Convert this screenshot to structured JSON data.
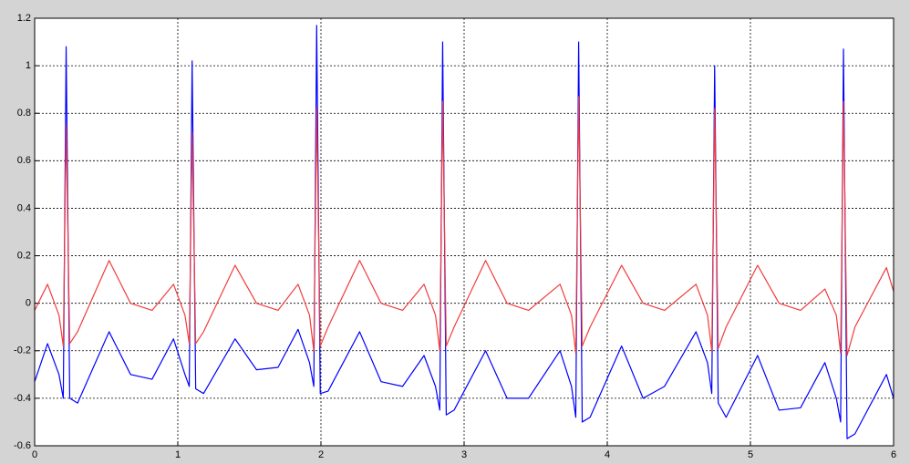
{
  "chart_data": {
    "type": "line",
    "x": [
      0.0,
      0.09,
      0.17,
      0.2,
      0.22,
      0.245,
      0.3,
      0.52,
      0.67,
      0.82,
      0.97,
      1.05,
      1.08,
      1.1,
      1.125,
      1.18,
      1.4,
      1.55,
      1.7,
      1.84,
      1.92,
      1.95,
      1.97,
      1.995,
      2.05,
      2.27,
      2.42,
      2.57,
      2.72,
      2.8,
      2.83,
      2.85,
      2.875,
      2.93,
      3.15,
      3.3,
      3.45,
      3.67,
      3.75,
      3.78,
      3.8,
      3.825,
      3.88,
      4.1,
      4.25,
      4.4,
      4.62,
      4.7,
      4.73,
      4.75,
      4.775,
      4.83,
      5.05,
      5.2,
      5.35,
      5.52,
      5.6,
      5.63,
      5.65,
      5.675,
      5.73,
      5.95,
      6.0
    ],
    "series": [
      {
        "color": "#0000ff",
        "values": [
          -0.33,
          -0.17,
          -0.3,
          -0.4,
          1.08,
          -0.4,
          -0.42,
          -0.12,
          -0.3,
          -0.32,
          -0.15,
          -0.3,
          -0.35,
          1.02,
          -0.36,
          -0.38,
          -0.15,
          -0.28,
          -0.27,
          -0.11,
          -0.25,
          -0.35,
          1.17,
          -0.38,
          -0.37,
          -0.12,
          -0.33,
          -0.35,
          -0.22,
          -0.35,
          -0.45,
          1.1,
          -0.47,
          -0.45,
          -0.2,
          -0.4,
          -0.4,
          -0.2,
          -0.35,
          -0.48,
          1.1,
          -0.5,
          -0.48,
          -0.18,
          -0.4,
          -0.35,
          -0.12,
          -0.25,
          -0.38,
          1.0,
          -0.42,
          -0.48,
          -0.22,
          -0.45,
          -0.44,
          -0.25,
          -0.4,
          -0.5,
          1.07,
          -0.57,
          -0.55,
          -0.3,
          -0.4
        ]
      },
      {
        "color": "#f03c3c",
        "values": [
          -0.03,
          0.08,
          -0.05,
          -0.18,
          0.75,
          -0.17,
          -0.12,
          0.18,
          0.0,
          -0.03,
          0.08,
          -0.05,
          -0.17,
          0.72,
          -0.17,
          -0.12,
          0.16,
          0.0,
          -0.03,
          0.08,
          -0.05,
          -0.2,
          0.82,
          -0.18,
          -0.1,
          0.18,
          0.0,
          -0.03,
          0.08,
          -0.05,
          -0.2,
          0.85,
          -0.18,
          -0.1,
          0.18,
          0.0,
          -0.03,
          0.08,
          -0.05,
          -0.21,
          0.87,
          -0.18,
          -0.1,
          0.16,
          0.0,
          -0.03,
          0.08,
          -0.05,
          -0.2,
          0.82,
          -0.19,
          -0.1,
          0.16,
          0.0,
          -0.03,
          0.06,
          -0.05,
          -0.21,
          0.85,
          -0.22,
          -0.1,
          0.15,
          0.05
        ]
      }
    ],
    "xlim": [
      0,
      6
    ],
    "ylim": [
      -0.6,
      1.2
    ],
    "xticks": [
      0,
      1,
      2,
      3,
      4,
      5,
      6
    ],
    "yticks": [
      -0.6,
      -0.4,
      -0.2,
      0,
      0.2,
      0.4,
      0.6,
      0.8,
      1,
      1.2
    ],
    "grid": true
  }
}
